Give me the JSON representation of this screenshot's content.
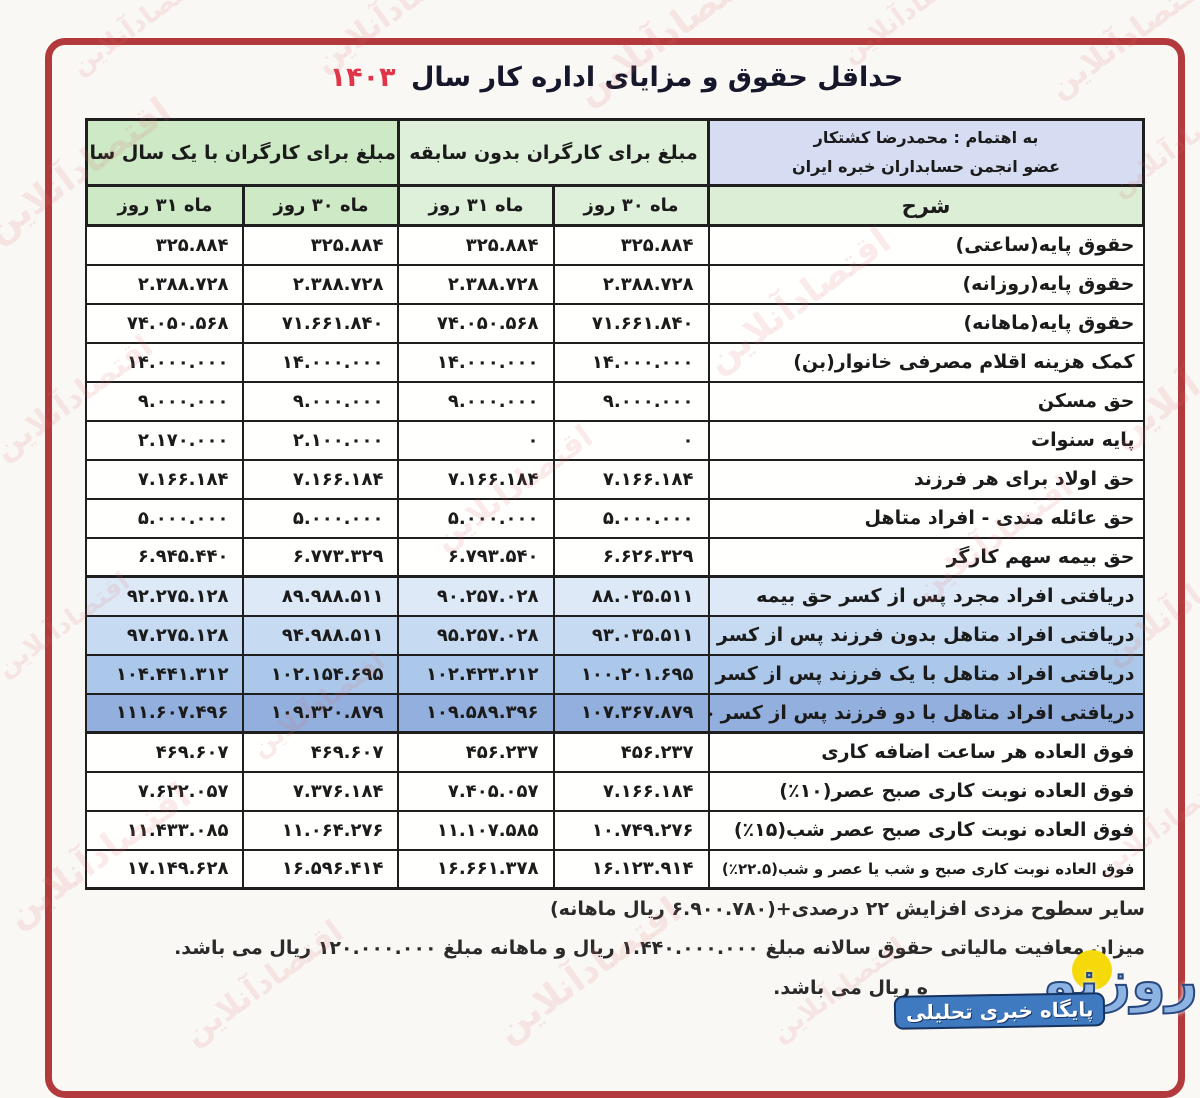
{
  "title": {
    "text": "حداقل حقوق و مزایای اداره کار سال",
    "year": "۱۴۰۳"
  },
  "header": {
    "attribution_line1": "به اهتمام : محمدرضا کشتکار",
    "attribution_line2": "عضو انجمن حسابداران خبره ایران",
    "desc_col": "شرح",
    "group_no_experience": "مبلغ برای کارگران بدون سابقه",
    "group_one_year": "مبلغ برای کارگران با یک سال سابقه",
    "month30": "ماه ۳۰ روز",
    "month31": "ماه ۳۱ روز"
  },
  "table": {
    "columns": [
      "شرح",
      "ماه ۳۰ روز (بدون سابقه)",
      "ماه ۳۱ روز (بدون سابقه)",
      "ماه ۳۰ روز (با یک سال سابقه)",
      "ماه ۳۱ روز (با یک سال سابقه)"
    ],
    "rows": [
      {
        "desc": "حقوق پایه(ساعتی)",
        "no30": "۳۲۵.۸۸۴",
        "no31": "۳۲۵.۸۸۴",
        "exp30": "۳۲۵.۸۸۴",
        "exp31": "۳۲۵.۸۸۴",
        "band": "white"
      },
      {
        "desc": "حقوق پایه(روزانه)",
        "no30": "۲.۳۸۸.۷۲۸",
        "no31": "۲.۳۸۸.۷۲۸",
        "exp30": "۲.۳۸۸.۷۲۸",
        "exp31": "۲.۳۸۸.۷۲۸",
        "band": "white"
      },
      {
        "desc": "حقوق پایه(ماهانه)",
        "no30": "۷۱.۶۶۱.۸۴۰",
        "no31": "۷۴.۰۵۰.۵۶۸",
        "exp30": "۷۱.۶۶۱.۸۴۰",
        "exp31": "۷۴.۰۵۰.۵۶۸",
        "band": "white"
      },
      {
        "desc": "کمک هزینه اقلام مصرفی خانوار(بن)",
        "no30": "۱۴.۰۰۰.۰۰۰",
        "no31": "۱۴.۰۰۰.۰۰۰",
        "exp30": "۱۴.۰۰۰.۰۰۰",
        "exp31": "۱۴.۰۰۰.۰۰۰",
        "band": "white"
      },
      {
        "desc": "حق مسکن",
        "no30": "۹.۰۰۰.۰۰۰",
        "no31": "۹.۰۰۰.۰۰۰",
        "exp30": "۹.۰۰۰.۰۰۰",
        "exp31": "۹.۰۰۰.۰۰۰",
        "band": "white"
      },
      {
        "desc": "پایه سنوات",
        "no30": "۰",
        "no31": "۰",
        "exp30": "۲.۱۰۰.۰۰۰",
        "exp31": "۲.۱۷۰.۰۰۰",
        "band": "white"
      },
      {
        "desc": "حق اولاد برای هر فرزند",
        "no30": "۷.۱۶۶.۱۸۴",
        "no31": "۷.۱۶۶.۱۸۴",
        "exp30": "۷.۱۶۶.۱۸۴",
        "exp31": "۷.۱۶۶.۱۸۴",
        "band": "white"
      },
      {
        "desc": "حق عائله مندی - افراد متاهل",
        "no30": "۵.۰۰۰.۰۰۰",
        "no31": "۵.۰۰۰.۰۰۰",
        "exp30": "۵.۰۰۰.۰۰۰",
        "exp31": "۵.۰۰۰.۰۰۰",
        "band": "white"
      },
      {
        "desc": "حق بیمه سهم کارگر",
        "no30": "۶.۶۲۶.۳۲۹",
        "no31": "۶.۷۹۳.۵۴۰",
        "exp30": "۶.۷۷۳.۳۲۹",
        "exp31": "۶.۹۴۵.۴۴۰",
        "band": "white"
      },
      {
        "desc": "دریافتی افراد مجرد پس از کسر حق بیمه",
        "no30": "۸۸.۰۳۵.۵۱۱",
        "no31": "۹۰.۲۵۷.۰۲۸",
        "exp30": "۸۹.۹۸۸.۵۱۱",
        "exp31": "۹۲.۲۷۵.۱۲۸",
        "band": "blue1"
      },
      {
        "desc": "دریافتی افراد متاهل بدون فرزند پس از کسر حق بیمه",
        "no30": "۹۳.۰۳۵.۵۱۱",
        "no31": "۹۵.۲۵۷.۰۲۸",
        "exp30": "۹۴.۹۸۸.۵۱۱",
        "exp31": "۹۷.۲۷۵.۱۲۸",
        "band": "blue2"
      },
      {
        "desc": "دریافتی افراد متاهل با یک فرزند پس از کسر حق بیمه",
        "no30": "۱۰۰.۲۰۱.۶۹۵",
        "no31": "۱۰۲.۴۲۳.۲۱۲",
        "exp30": "۱۰۲.۱۵۴.۶۹۵",
        "exp31": "۱۰۴.۴۴۱.۳۱۲",
        "band": "blue3"
      },
      {
        "desc": "دریافتی افراد متاهل با دو فرزند پس از کسر حق بیمه",
        "no30": "۱۰۷.۳۶۷.۸۷۹",
        "no31": "۱۰۹.۵۸۹.۳۹۶",
        "exp30": "۱۰۹.۳۲۰.۸۷۹",
        "exp31": "۱۱۱.۶۰۷.۴۹۶",
        "band": "blue4"
      },
      {
        "desc": "فوق العاده هر ساعت اضافه کاری",
        "no30": "۴۵۶.۲۳۷",
        "no31": "۴۵۶.۲۳۷",
        "exp30": "۴۶۹.۶۰۷",
        "exp31": "۴۶۹.۶۰۷",
        "band": "white"
      },
      {
        "desc": "فوق العاده نوبت کاری صبح عصر(۱۰٪)",
        "no30": "۷.۱۶۶.۱۸۴",
        "no31": "۷.۴۰۵.۰۵۷",
        "exp30": "۷.۳۷۶.۱۸۴",
        "exp31": "۷.۶۲۲.۰۵۷",
        "band": "white"
      },
      {
        "desc": "فوق العاده نوبت کاری صبح عصر شب(۱۵٪)",
        "no30": "۱۰.۷۴۹.۲۷۶",
        "no31": "۱۱.۱۰۷.۵۸۵",
        "exp30": "۱۱.۰۶۴.۲۷۶",
        "exp31": "۱۱.۴۳۳.۰۸۵",
        "band": "white"
      },
      {
        "desc": "فوق العاده نوبت کاری صبح و شب یا عصر و شب(۲۲.۵٪)",
        "no30": "۱۶.۱۲۳.۹۱۴",
        "no31": "۱۶.۶۶۱.۳۷۸",
        "exp30": "۱۶.۵۹۶.۴۱۴",
        "exp31": "۱۷.۱۴۹.۶۲۸",
        "band": "white",
        "small": true
      }
    ]
  },
  "footnotes": {
    "line1": "سایر سطوح مزدی افزایش ۲۲ درصدی+(۶.۹۰۰.۷۸۰ ریال ماهانه)",
    "line2": "میزان معافیت مالیاتی حقوق سالانه مبلغ ۱.۴۴۰.۰۰۰.۰۰۰ ریال و ماهانه مبلغ ۱۲۰.۰۰۰.۰۰۰ ریال می باشد.",
    "line3_visible": "ه ریال می باشد."
  },
  "logo": {
    "name": "روزنو",
    "tagline": "پایگاه خبری تحلیلی"
  },
  "watermark": {
    "text": "اقتصادآنلاین"
  },
  "colors": {
    "frame_red": "#b23a3c",
    "title_year_red": "#e03449",
    "header_blue": "#d6dcf1",
    "header_green_light": "#dff0da",
    "header_green": "#cde9c5",
    "row_blue_1": "#dde9f7",
    "row_blue_2": "#c6daf1",
    "row_blue_3": "#abc7e9",
    "row_blue_4": "#93afdd",
    "logo_blue": "#3f7ac0",
    "logo_yellow": "#f6d90a",
    "watermark_pink": "#db6a6a"
  }
}
